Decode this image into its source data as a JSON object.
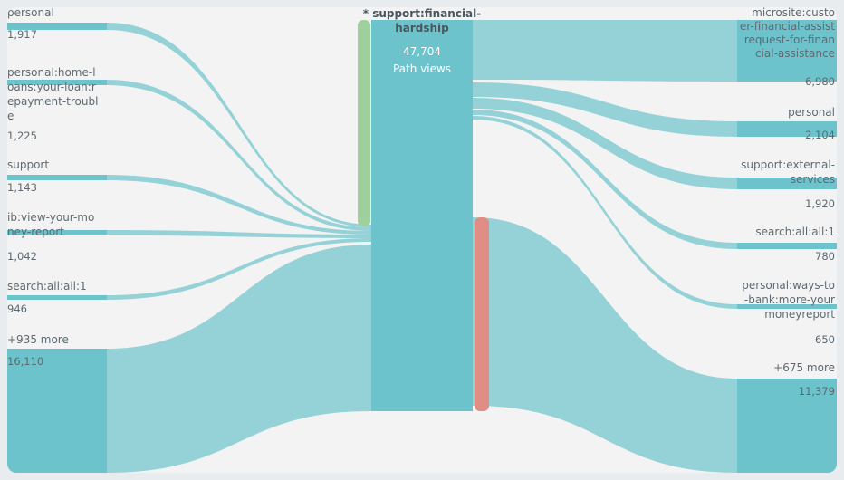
{
  "chart_data": {
    "type": "sankey",
    "title": "",
    "focus_node": {
      "label_lines": [
        "* support:financial-",
        "hardship"
      ],
      "value": "47,704",
      "value_caption": "Path views"
    },
    "incoming": [
      {
        "label_lines": [
          "personal"
        ],
        "value": "1,917",
        "raw": 1917
      },
      {
        "label_lines": [
          "personal:home-l",
          "oans:your-loan:r",
          "epayment-troubl",
          "e"
        ],
        "value": "1,225",
        "raw": 1225
      },
      {
        "label_lines": [
          "support"
        ],
        "value": "1,143",
        "raw": 1143
      },
      {
        "label_lines": [
          "ib:view-your-mo",
          "ney-report"
        ],
        "value": "1,042",
        "raw": 1042
      },
      {
        "label_lines": [
          "search:all:all:1"
        ],
        "value": "946",
        "raw": 946
      },
      {
        "label_lines": [
          "+935 more"
        ],
        "value": "16,110",
        "raw": 16110
      }
    ],
    "outgoing": [
      {
        "label_lines": [
          "microsite:custo",
          "er-financial-assist",
          "request-for-finan",
          "cial-assistance"
        ],
        "value": "6,980",
        "raw": 6980
      },
      {
        "label_lines": [
          "personal"
        ],
        "value": "2,104",
        "raw": 2104
      },
      {
        "label_lines": [
          "support:external-",
          "services"
        ],
        "value": "1,920",
        "raw": 1920
      },
      {
        "label_lines": [
          "search:all:all:1"
        ],
        "value": "780",
        "raw": 780
      },
      {
        "label_lines": [
          "personal:ways-to",
          "-bank:more-your",
          "moneyreport"
        ],
        "value": "650",
        "raw": 650
      },
      {
        "label_lines": [
          "+675 more"
        ],
        "value": "11,379",
        "raw": 11379
      }
    ],
    "colors": {
      "flow": "#8fd0d6",
      "node": "#6cc3cc",
      "focus": "#6cc3cc",
      "entry_bar": "#9fcf9c",
      "exit_bar": "#e08d85",
      "label": "#5d6a72"
    }
  }
}
